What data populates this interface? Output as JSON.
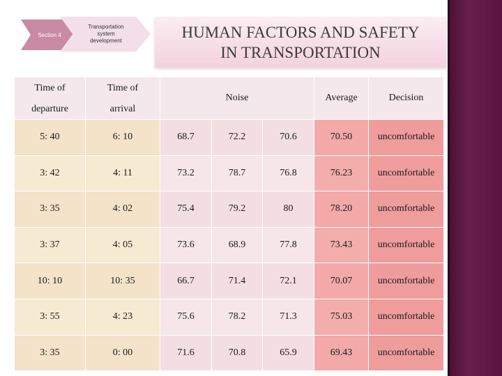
{
  "section": {
    "label": "Section 4"
  },
  "breadcrumb": {
    "label": "Transportation system development"
  },
  "title": {
    "line1": "HUMAN FACTORS AND SAFETY",
    "line2": "IN TRANSPORTATION"
  },
  "table": {
    "headers": {
      "departure_line1": "Time of",
      "departure_line2": "departure",
      "arrival_line1": "Time of",
      "arrival_line2": "arrival",
      "noise": "Noise",
      "average": "Average",
      "decision": "Decision"
    },
    "rows": [
      {
        "departure": "5: 40",
        "arrival": "6: 10",
        "n1": "68.7",
        "n2": "72.2",
        "n3": "70.6",
        "average": "70.50",
        "decision": "uncomfortable"
      },
      {
        "departure": "3: 42",
        "arrival": "4: 11",
        "n1": "73.2",
        "n2": "78.7",
        "n3": "76.8",
        "average": "76.23",
        "decision": "uncomfortable"
      },
      {
        "departure": "3: 35",
        "arrival": "4: 02",
        "n1": "75.4",
        "n2": "79.2",
        "n3": "80",
        "average": "78.20",
        "decision": "uncomfortable"
      },
      {
        "departure": "3: 37",
        "arrival": "4: 05",
        "n1": "73.6",
        "n2": "68.9",
        "n3": "77.8",
        "average": "73.43",
        "decision": "uncomfortable"
      },
      {
        "departure": "10: 10",
        "arrival": "10: 35",
        "n1": "66.7",
        "n2": "71.4",
        "n3": "72.1",
        "average": "70.07",
        "decision": "uncomfortable"
      },
      {
        "departure": "3: 55",
        "arrival": "4: 23",
        "n1": "75.6",
        "n2": "78.2",
        "n3": "71.3",
        "average": "75.03",
        "decision": "uncomfortable"
      },
      {
        "departure": "3: 35",
        "arrival": "0: 00",
        "n1": "71.6",
        "n2": "70.8",
        "n3": "65.9",
        "average": "69.43",
        "decision": "uncomfortable"
      }
    ]
  },
  "colors": {
    "accent": "#6a1e4c",
    "average_fill": "#f3a9a8",
    "decision_fill": "#ef9c9c"
  }
}
